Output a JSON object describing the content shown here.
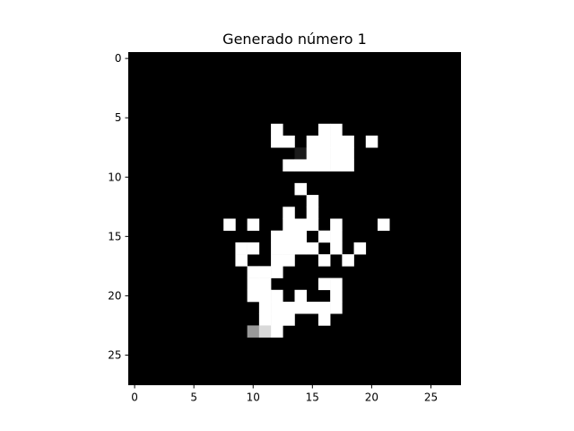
{
  "chart_data": {
    "type": "heatmap",
    "title": "Generado número 1",
    "xlabel": "",
    "ylabel": "",
    "colormap": "gray",
    "shape": [
      28,
      28
    ],
    "xlim": [
      -0.5,
      27.5
    ],
    "ylim": [
      27.5,
      -0.5
    ],
    "xticks": [
      0,
      5,
      10,
      15,
      20,
      25
    ],
    "yticks": [
      0,
      5,
      10,
      15,
      20,
      25
    ],
    "grid": false,
    "values_range": [
      0,
      1
    ],
    "cells": [
      {
        "row": 6,
        "col": 12,
        "v": 1
      },
      {
        "row": 6,
        "col": 16,
        "v": 1
      },
      {
        "row": 6,
        "col": 17,
        "v": 1
      },
      {
        "row": 7,
        "col": 12,
        "v": 1
      },
      {
        "row": 7,
        "col": 13,
        "v": 1
      },
      {
        "row": 7,
        "col": 15,
        "v": 1
      },
      {
        "row": 7,
        "col": 16,
        "v": 1
      },
      {
        "row": 7,
        "col": 17,
        "v": 1
      },
      {
        "row": 7,
        "col": 18,
        "v": 1
      },
      {
        "row": 7,
        "col": 20,
        "v": 1
      },
      {
        "row": 8,
        "col": 14,
        "v": 0.1
      },
      {
        "row": 8,
        "col": 15,
        "v": 1
      },
      {
        "row": 8,
        "col": 16,
        "v": 1
      },
      {
        "row": 8,
        "col": 17,
        "v": 1
      },
      {
        "row": 8,
        "col": 18,
        "v": 1
      },
      {
        "row": 9,
        "col": 13,
        "v": 1
      },
      {
        "row": 9,
        "col": 14,
        "v": 1
      },
      {
        "row": 9,
        "col": 15,
        "v": 1
      },
      {
        "row": 9,
        "col": 16,
        "v": 1
      },
      {
        "row": 9,
        "col": 17,
        "v": 1
      },
      {
        "row": 9,
        "col": 18,
        "v": 1
      },
      {
        "row": 11,
        "col": 14,
        "v": 1
      },
      {
        "row": 12,
        "col": 15,
        "v": 1
      },
      {
        "row": 13,
        "col": 13,
        "v": 1
      },
      {
        "row": 13,
        "col": 15,
        "v": 1
      },
      {
        "row": 14,
        "col": 8,
        "v": 1
      },
      {
        "row": 14,
        "col": 10,
        "v": 1
      },
      {
        "row": 14,
        "col": 13,
        "v": 1
      },
      {
        "row": 14,
        "col": 14,
        "v": 1
      },
      {
        "row": 14,
        "col": 15,
        "v": 1
      },
      {
        "row": 14,
        "col": 17,
        "v": 1
      },
      {
        "row": 14,
        "col": 21,
        "v": 1
      },
      {
        "row": 15,
        "col": 12,
        "v": 1
      },
      {
        "row": 15,
        "col": 13,
        "v": 1
      },
      {
        "row": 15,
        "col": 14,
        "v": 1
      },
      {
        "row": 15,
        "col": 16,
        "v": 1
      },
      {
        "row": 15,
        "col": 17,
        "v": 1
      },
      {
        "row": 16,
        "col": 9,
        "v": 1
      },
      {
        "row": 16,
        "col": 10,
        "v": 1
      },
      {
        "row": 16,
        "col": 12,
        "v": 1
      },
      {
        "row": 16,
        "col": 13,
        "v": 1
      },
      {
        "row": 16,
        "col": 14,
        "v": 1
      },
      {
        "row": 16,
        "col": 15,
        "v": 1
      },
      {
        "row": 16,
        "col": 17,
        "v": 1
      },
      {
        "row": 16,
        "col": 19,
        "v": 1
      },
      {
        "row": 17,
        "col": 9,
        "v": 1
      },
      {
        "row": 17,
        "col": 12,
        "v": 1
      },
      {
        "row": 17,
        "col": 13,
        "v": 1
      },
      {
        "row": 17,
        "col": 16,
        "v": 1
      },
      {
        "row": 17,
        "col": 18,
        "v": 1
      },
      {
        "row": 18,
        "col": 10,
        "v": 1
      },
      {
        "row": 18,
        "col": 11,
        "v": 1
      },
      {
        "row": 18,
        "col": 12,
        "v": 1
      },
      {
        "row": 19,
        "col": 10,
        "v": 1
      },
      {
        "row": 19,
        "col": 11,
        "v": 1
      },
      {
        "row": 19,
        "col": 16,
        "v": 1
      },
      {
        "row": 19,
        "col": 17,
        "v": 1
      },
      {
        "row": 20,
        "col": 10,
        "v": 1
      },
      {
        "row": 20,
        "col": 11,
        "v": 1
      },
      {
        "row": 20,
        "col": 12,
        "v": 1
      },
      {
        "row": 20,
        "col": 14,
        "v": 1
      },
      {
        "row": 20,
        "col": 17,
        "v": 1
      },
      {
        "row": 21,
        "col": 11,
        "v": 1
      },
      {
        "row": 21,
        "col": 12,
        "v": 1
      },
      {
        "row": 21,
        "col": 13,
        "v": 1
      },
      {
        "row": 21,
        "col": 14,
        "v": 1
      },
      {
        "row": 21,
        "col": 15,
        "v": 1
      },
      {
        "row": 21,
        "col": 16,
        "v": 1
      },
      {
        "row": 21,
        "col": 17,
        "v": 1
      },
      {
        "row": 22,
        "col": 11,
        "v": 1
      },
      {
        "row": 22,
        "col": 12,
        "v": 1
      },
      {
        "row": 22,
        "col": 13,
        "v": 1
      },
      {
        "row": 22,
        "col": 16,
        "v": 1
      },
      {
        "row": 23,
        "col": 10,
        "v": 0.6
      },
      {
        "row": 23,
        "col": 11,
        "v": 0.85
      },
      {
        "row": 23,
        "col": 12,
        "v": 1
      }
    ]
  }
}
